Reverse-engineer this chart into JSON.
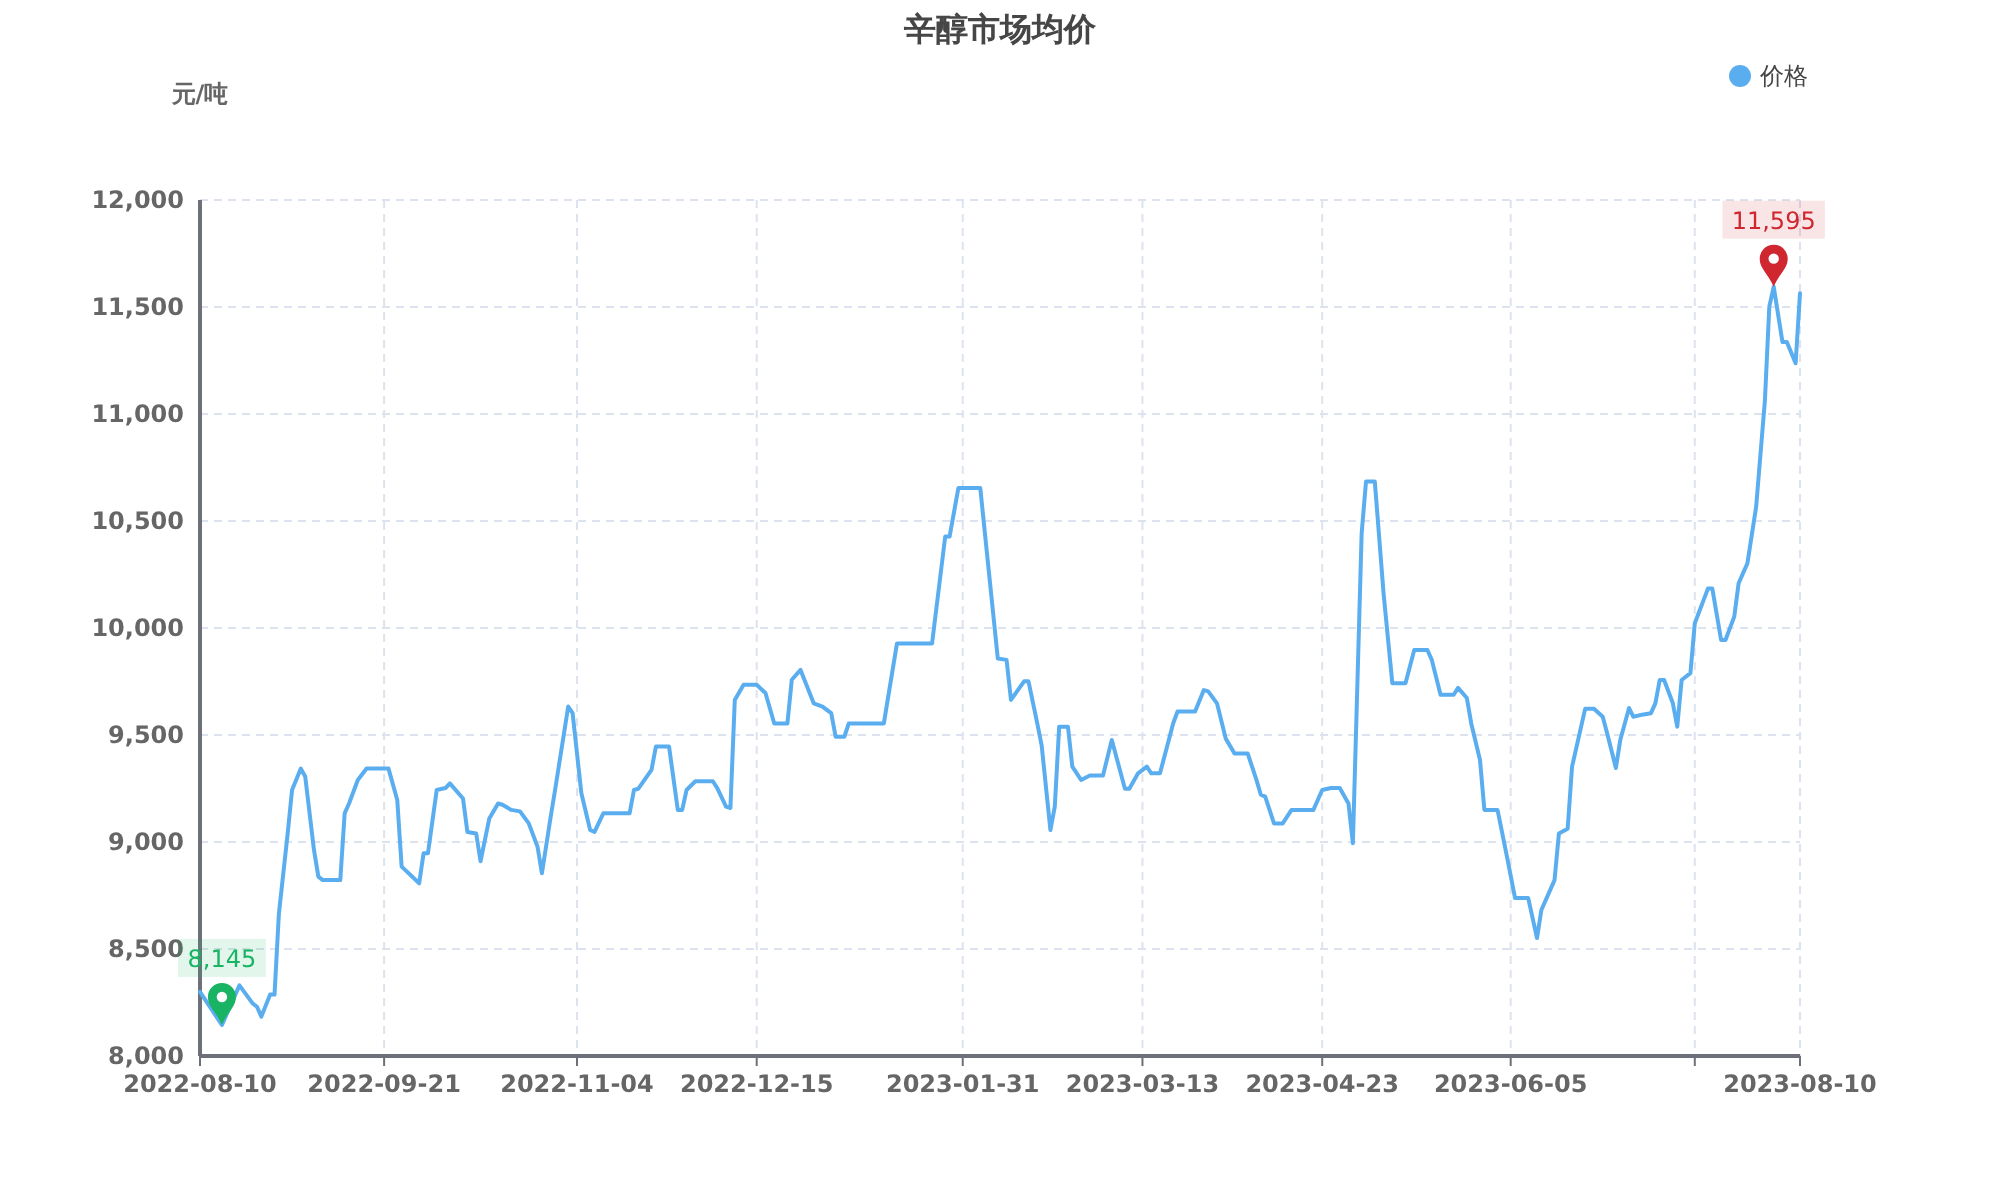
{
  "chart_data": {
    "type": "line",
    "title": "辛醇市场均价",
    "ylabel": "元/吨",
    "x": [
      "2022-08-10",
      "2022-08-15",
      "2022-08-19",
      "2022-08-22",
      "2022-08-23",
      "2022-08-24",
      "2022-08-26",
      "2022-08-27",
      "2022-08-28",
      "2022-08-30",
      "2022-08-31",
      "2022-09-02",
      "2022-09-03",
      "2022-09-05",
      "2022-09-06",
      "2022-09-07",
      "2022-09-11",
      "2022-09-12",
      "2022-09-13",
      "2022-09-15",
      "2022-09-17",
      "2022-09-22",
      "2022-09-24",
      "2022-09-25",
      "2022-09-29",
      "2022-09-30",
      "2022-10-01",
      "2022-10-03",
      "2022-10-05",
      "2022-10-06",
      "2022-10-09",
      "2022-10-10",
      "2022-10-12",
      "2022-10-13",
      "2022-10-15",
      "2022-10-17",
      "2022-10-18",
      "2022-10-20",
      "2022-10-22",
      "2022-10-24",
      "2022-10-26",
      "2022-10-27",
      "2022-10-29",
      "2022-10-30",
      "2022-11-02",
      "2022-11-03",
      "2022-11-05",
      "2022-11-07",
      "2022-11-08",
      "2022-11-10",
      "2022-11-16",
      "2022-11-17",
      "2022-11-18",
      "2022-11-21",
      "2022-11-22",
      "2022-11-25",
      "2022-11-27",
      "2022-11-28",
      "2022-11-29",
      "2022-12-01",
      "2022-12-05",
      "2022-12-06",
      "2022-12-08",
      "2022-12-09",
      "2022-12-10",
      "2022-12-12",
      "2022-12-13",
      "2022-12-15",
      "2022-12-17",
      "2022-12-19",
      "2022-12-22",
      "2022-12-23",
      "2022-12-25",
      "2022-12-28",
      "2022-12-30",
      "2023-01-01",
      "2023-01-02",
      "2023-01-04",
      "2023-01-05",
      "2023-01-13",
      "2023-01-16",
      "2023-01-24",
      "2023-01-27",
      "2023-01-28",
      "2023-01-30",
      "2023-02-04",
      "2023-02-06",
      "2023-02-08",
      "2023-02-10",
      "2023-02-11",
      "2023-02-14",
      "2023-02-15",
      "2023-02-17",
      "2023-02-18",
      "2023-02-20",
      "2023-02-21",
      "2023-02-22",
      "2023-02-24",
      "2023-02-25",
      "2023-02-27",
      "2023-03-01",
      "2023-03-04",
      "2023-03-06",
      "2023-03-09",
      "2023-03-10",
      "2023-03-12",
      "2023-03-14",
      "2023-03-15",
      "2023-03-17",
      "2023-03-20",
      "2023-03-21",
      "2023-03-25",
      "2023-03-27",
      "2023-03-28",
      "2023-03-30",
      "2023-04-01",
      "2023-04-03",
      "2023-04-06",
      "2023-04-08",
      "2023-04-09",
      "2023-04-10",
      "2023-04-12",
      "2023-04-14",
      "2023-04-16",
      "2023-04-21",
      "2023-04-23",
      "2023-04-25",
      "2023-04-27",
      "2023-04-29",
      "2023-04-30",
      "2023-05-02",
      "2023-05-03",
      "2023-05-05",
      "2023-05-07",
      "2023-05-09",
      "2023-05-12",
      "2023-05-14",
      "2023-05-17",
      "2023-05-18",
      "2023-05-20",
      "2023-05-23",
      "2023-05-24",
      "2023-05-26",
      "2023-05-27",
      "2023-05-29",
      "2023-05-30",
      "2023-06-02",
      "2023-06-04",
      "2023-06-06",
      "2023-06-09",
      "2023-06-11",
      "2023-06-12",
      "2023-06-15",
      "2023-06-16",
      "2023-06-18",
      "2023-06-19",
      "2023-06-22",
      "2023-06-24",
      "2023-06-26",
      "2023-06-27",
      "2023-06-29",
      "2023-06-30",
      "2023-07-02",
      "2023-07-03",
      "2023-07-05",
      "2023-07-07",
      "2023-07-08",
      "2023-07-09",
      "2023-07-10",
      "2023-07-12",
      "2023-07-13",
      "2023-07-14",
      "2023-07-16",
      "2023-07-17",
      "2023-07-20",
      "2023-07-21",
      "2023-07-23",
      "2023-07-24",
      "2023-07-26",
      "2023-07-27",
      "2023-07-29",
      "2023-07-31",
      "2023-08-02",
      "2023-08-03",
      "2023-08-04",
      "2023-08-06",
      "2023-08-07",
      "2023-08-09",
      "2023-08-10"
    ],
    "series": [
      {
        "name": "价格",
        "color": "#5aaef0",
        "values": [
          8300,
          8145,
          8330,
          8246,
          8230,
          8184,
          8287,
          8287,
          8666,
          9040,
          9243,
          9343,
          9306,
          8963,
          8838,
          8822,
          8822,
          9134,
          9180,
          9290,
          9343,
          9343,
          9196,
          8885,
          8807,
          8947,
          8947,
          9243,
          9252,
          9274,
          9203,
          9047,
          9040,
          8910,
          9110,
          9180,
          9174,
          9150,
          9143,
          9087,
          8978,
          8854,
          9118,
          9243,
          9633,
          9602,
          9228,
          9056,
          9047,
          9134,
          9134,
          9243,
          9249,
          9337,
          9446,
          9446,
          9150,
          9150,
          9243,
          9284,
          9284,
          9252,
          9165,
          9159,
          9664,
          9735,
          9735,
          9735,
          9696,
          9554,
          9554,
          9758,
          9804,
          9648,
          9633,
          9602,
          9492,
          9492,
          9554,
          9554,
          9928,
          9928,
          10427,
          10427,
          10654,
          10654,
          10255,
          9857,
          9851,
          9664,
          9751,
          9751,
          9554,
          9452,
          9056,
          9165,
          9539,
          9539,
          9352,
          9290,
          9311,
          9311,
          9477,
          9249,
          9249,
          9321,
          9352,
          9321,
          9321,
          9554,
          9610,
          9610,
          9710,
          9704,
          9648,
          9483,
          9414,
          9414,
          9290,
          9221,
          9212,
          9087,
          9087,
          9150,
          9150,
          9243,
          9252,
          9252,
          9180,
          8994,
          10442,
          10685,
          10685,
          10162,
          9742,
          9742,
          9897,
          9897,
          9851,
          9688,
          9688,
          9720,
          9673,
          9554,
          9383,
          9150,
          9150,
          8947,
          8738,
          8738,
          8551,
          8682,
          8822,
          9040,
          9062,
          9352,
          9623,
          9623,
          9585,
          9508,
          9346,
          9477,
          9626,
          9585,
          9595,
          9602,
          9648,
          9757,
          9757,
          9648,
          9539,
          9757,
          9789,
          10022,
          10184,
          10184,
          9944,
          9944,
          10053,
          10209,
          10302,
          10567,
          11065,
          11502,
          11595,
          11336,
          11336,
          11237,
          11564
        ]
      }
    ],
    "xlim": [
      "2022-08-10",
      "2023-08-10"
    ],
    "xticks": [
      "2022-08-10",
      "2022-09-21",
      "2022-11-04",
      "2022-12-15",
      "2023-01-31",
      "2023-03-13",
      "2023-04-23",
      "2023-06-05",
      {
        "value": "2023-07-17",
        "label": null
      },
      "2023-08-10"
    ],
    "ylim": [
      8000,
      12000
    ],
    "yticks": [
      {
        "value": 8000,
        "label": "8,000"
      },
      {
        "value": 8500,
        "label": "8,500"
      },
      {
        "value": 9000,
        "label": "9,000"
      },
      {
        "value": 9500,
        "label": "9,500"
      },
      {
        "value": 10000,
        "label": "10,000"
      },
      {
        "value": 10500,
        "label": "10,500"
      },
      {
        "value": 11000,
        "label": "11,000"
      },
      {
        "value": 11500,
        "label": "11,500"
      },
      {
        "value": 12000,
        "label": "12,000"
      }
    ],
    "grid": true,
    "legend": "top right",
    "marker": "none",
    "line_style": "solid",
    "annotations": [
      {
        "text": "8,145",
        "x": "2022-08-15",
        "y": 8145
      },
      {
        "text": "11,595",
        "x": "2023-08-04",
        "y": 11595
      }
    ]
  }
}
